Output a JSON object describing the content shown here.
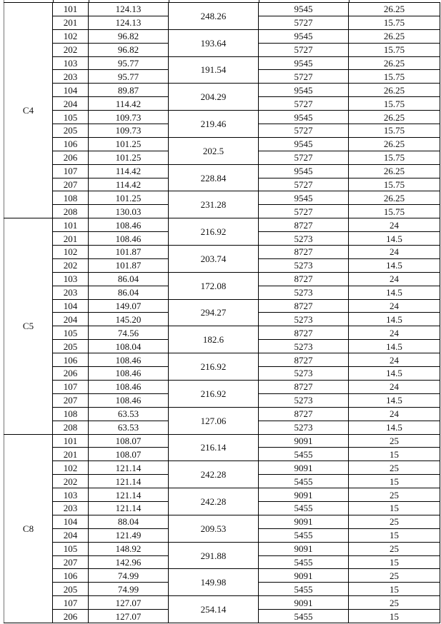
{
  "groups": [
    {
      "label": "C4",
      "pairs": [
        {
          "total": "248.26",
          "rows": [
            {
              "room": "101",
              "area": "124.13",
              "a": "9545",
              "b": "26.25"
            },
            {
              "room": "201",
              "area": "124.13",
              "a": "5727",
              "b": "15.75"
            }
          ]
        },
        {
          "total": "193.64",
          "rows": [
            {
              "room": "102",
              "area": "96.82",
              "a": "9545",
              "b": "26.25"
            },
            {
              "room": "202",
              "area": "96.82",
              "a": "5727",
              "b": "15.75"
            }
          ]
        },
        {
          "total": "191.54",
          "rows": [
            {
              "room": "103",
              "area": "95.77",
              "a": "9545",
              "b": "26.25"
            },
            {
              "room": "203",
              "area": "95.77",
              "a": "5727",
              "b": "15.75"
            }
          ]
        },
        {
          "total": "204.29",
          "rows": [
            {
              "room": "104",
              "area": "89.87",
              "a": "9545",
              "b": "26.25"
            },
            {
              "room": "204",
              "area": "114.42",
              "a": "5727",
              "b": "15.75"
            }
          ]
        },
        {
          "total": "219.46",
          "rows": [
            {
              "room": "105",
              "area": "109.73",
              "a": "9545",
              "b": "26.25"
            },
            {
              "room": "205",
              "area": "109.73",
              "a": "5727",
              "b": "15.75"
            }
          ]
        },
        {
          "total": "202.5",
          "rows": [
            {
              "room": "106",
              "area": "101.25",
              "a": "9545",
              "b": "26.25"
            },
            {
              "room": "206",
              "area": "101.25",
              "a": "5727",
              "b": "15.75"
            }
          ]
        },
        {
          "total": "228.84",
          "rows": [
            {
              "room": "107",
              "area": "114.42",
              "a": "9545",
              "b": "26.25"
            },
            {
              "room": "207",
              "area": "114.42",
              "a": "5727",
              "b": "15.75"
            }
          ]
        },
        {
          "total": "231.28",
          "rows": [
            {
              "room": "108",
              "area": "101.25",
              "a": "9545",
              "b": "26.25"
            },
            {
              "room": "208",
              "area": "130.03",
              "a": "5727",
              "b": "15.75"
            }
          ]
        }
      ]
    },
    {
      "label": "C5",
      "pairs": [
        {
          "total": "216.92",
          "rows": [
            {
              "room": "101",
              "area": "108.46",
              "a": "8727",
              "b": "24"
            },
            {
              "room": "201",
              "area": "108.46",
              "a": "5273",
              "b": "14.5"
            }
          ]
        },
        {
          "total": "203.74",
          "rows": [
            {
              "room": "102",
              "area": "101.87",
              "a": "8727",
              "b": "24"
            },
            {
              "room": "202",
              "area": "101.87",
              "a": "5273",
              "b": "14.5"
            }
          ]
        },
        {
          "total": "172.08",
          "rows": [
            {
              "room": "103",
              "area": "86.04",
              "a": "8727",
              "b": "24"
            },
            {
              "room": "203",
              "area": "86.04",
              "a": "5273",
              "b": "14.5"
            }
          ]
        },
        {
          "total": "294.27",
          "rows": [
            {
              "room": "104",
              "area": "149.07",
              "a": "8727",
              "b": "24"
            },
            {
              "room": "204",
              "area": "145.20",
              "a": "5273",
              "b": "14.5"
            }
          ]
        },
        {
          "total": "182.6",
          "rows": [
            {
              "room": "105",
              "area": "74.56",
              "a": "8727",
              "b": "24"
            },
            {
              "room": "205",
              "area": "108.04",
              "a": "5273",
              "b": "14.5"
            }
          ]
        },
        {
          "total": "216.92",
          "rows": [
            {
              "room": "106",
              "area": "108.46",
              "a": "8727",
              "b": "24"
            },
            {
              "room": "206",
              "area": "108.46",
              "a": "5273",
              "b": "14.5"
            }
          ]
        },
        {
          "total": "216.92",
          "rows": [
            {
              "room": "107",
              "area": "108.46",
              "a": "8727",
              "b": "24"
            },
            {
              "room": "207",
              "area": "108.46",
              "a": "5273",
              "b": "14.5"
            }
          ]
        },
        {
          "total": "127.06",
          "rows": [
            {
              "room": "108",
              "area": "63.53",
              "a": "8727",
              "b": "24"
            },
            {
              "room": "208",
              "area": "63.53",
              "a": "5273",
              "b": "14.5"
            }
          ]
        }
      ]
    },
    {
      "label": "C8",
      "pairs": [
        {
          "total": "216.14",
          "rows": [
            {
              "room": "101",
              "area": "108.07",
              "a": "9091",
              "b": "25"
            },
            {
              "room": "201",
              "area": "108.07",
              "a": "5455",
              "b": "15"
            }
          ]
        },
        {
          "total": "242.28",
          "rows": [
            {
              "room": "102",
              "area": "121.14",
              "a": "9091",
              "b": "25"
            },
            {
              "room": "202",
              "area": "121.14",
              "a": "5455",
              "b": "15"
            }
          ]
        },
        {
          "total": "242.28",
          "rows": [
            {
              "room": "103",
              "area": "121.14",
              "a": "9091",
              "b": "25"
            },
            {
              "room": "203",
              "area": "121.14",
              "a": "5455",
              "b": "15"
            }
          ]
        },
        {
          "total": "209.53",
          "rows": [
            {
              "room": "104",
              "area": "88.04",
              "a": "9091",
              "b": "25"
            },
            {
              "room": "204",
              "area": "121.49",
              "a": "5455",
              "b": "15"
            }
          ]
        },
        {
          "total": "291.88",
          "rows": [
            {
              "room": "105",
              "area": "148.92",
              "a": "9091",
              "b": "25"
            },
            {
              "room": "207",
              "area": "142.96",
              "a": "5455",
              "b": "15"
            }
          ]
        },
        {
          "total": "149.98",
          "rows": [
            {
              "room": "106",
              "area": "74.99",
              "a": "9091",
              "b": "25"
            },
            {
              "room": "205",
              "area": "74.99",
              "a": "5455",
              "b": "15"
            }
          ]
        },
        {
          "total": "254.14",
          "rows": [
            {
              "room": "107",
              "area": "127.07",
              "a": "9091",
              "b": "25"
            },
            {
              "room": "206",
              "area": "127.07",
              "a": "5455",
              "b": "15"
            }
          ]
        }
      ]
    }
  ]
}
